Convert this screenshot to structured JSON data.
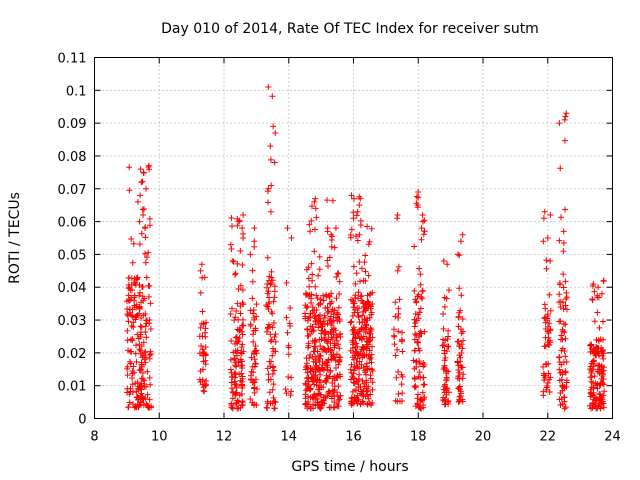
{
  "chart_data": {
    "type": "scatter",
    "title": "Day 010 of 2014, Rate Of TEC Index for receiver sutm",
    "xlabel": "GPS time / hours",
    "ylabel": "ROTI / TECUs",
    "xlim": [
      8,
      24
    ],
    "ylim": [
      0,
      0.11
    ],
    "xticks": [
      "8",
      "10",
      "12",
      "14",
      "16",
      "18",
      "20",
      "22",
      "24"
    ],
    "yticks": [
      "0",
      "0.01",
      "0.02",
      "0.03",
      "0.04",
      "0.05",
      "0.06",
      "0.07",
      "0.08",
      "0.09",
      "0.1",
      "0.11"
    ],
    "grid": true,
    "marker": "+",
    "series_color": "#ff0000",
    "clusters": [
      {
        "x_start": 9.0,
        "x_end": 9.75,
        "y_min": 0.003,
        "y_max": 0.077,
        "count": 220,
        "peaks": [
          0.077,
          0.076,
          0.075,
          0.072,
          0.07,
          0.068,
          0.066,
          0.062,
          0.06,
          0.058
        ]
      },
      {
        "x_start": 11.25,
        "x_end": 11.45,
        "y_min": 0.008,
        "y_max": 0.047,
        "count": 40,
        "peaks": [
          0.047,
          0.045,
          0.043
        ]
      },
      {
        "x_start": 12.2,
        "x_end": 12.6,
        "y_min": 0.003,
        "y_max": 0.062,
        "count": 120,
        "peaks": [
          0.062,
          0.06,
          0.058,
          0.055,
          0.053
        ]
      },
      {
        "x_start": 12.8,
        "x_end": 13.05,
        "y_min": 0.004,
        "y_max": 0.058,
        "count": 50,
        "peaks": [
          0.058,
          0.05
        ]
      },
      {
        "x_start": 13.3,
        "x_end": 13.6,
        "y_min": 0.003,
        "y_max": 0.101,
        "count": 70,
        "peaks": [
          0.101,
          0.089,
          0.087,
          0.083,
          0.078,
          0.071,
          0.07,
          0.063
        ]
      },
      {
        "x_start": 13.9,
        "x_end": 14.1,
        "y_min": 0.007,
        "y_max": 0.058,
        "count": 15,
        "peaks": [
          0.058,
          0.055
        ]
      },
      {
        "x_start": 14.5,
        "x_end": 15.6,
        "y_min": 0.003,
        "y_max": 0.067,
        "count": 380,
        "peaks": [
          0.067,
          0.066,
          0.058,
          0.057,
          0.056
        ]
      },
      {
        "x_start": 15.9,
        "x_end": 16.6,
        "y_min": 0.004,
        "y_max": 0.068,
        "count": 260,
        "peaks": [
          0.068,
          0.067,
          0.065,
          0.063,
          0.061
        ]
      },
      {
        "x_start": 17.25,
        "x_end": 17.55,
        "y_min": 0.005,
        "y_max": 0.062,
        "count": 30,
        "peaks": [
          0.062,
          0.061,
          0.045
        ]
      },
      {
        "x_start": 17.85,
        "x_end": 18.2,
        "y_min": 0.003,
        "y_max": 0.069,
        "count": 90,
        "peaks": [
          0.069,
          0.065,
          0.062,
          0.06,
          0.058
        ]
      },
      {
        "x_start": 18.75,
        "x_end": 18.95,
        "y_min": 0.004,
        "y_max": 0.048,
        "count": 50,
        "peaks": [
          0.048,
          0.047
        ]
      },
      {
        "x_start": 19.2,
        "x_end": 19.4,
        "y_min": 0.005,
        "y_max": 0.056,
        "count": 50,
        "peaks": [
          0.056,
          0.054,
          0.05
        ]
      },
      {
        "x_start": 21.85,
        "x_end": 22.1,
        "y_min": 0.007,
        "y_max": 0.063,
        "count": 50,
        "peaks": [
          0.063,
          0.062,
          0.061,
          0.055,
          0.054,
          0.048
        ]
      },
      {
        "x_start": 22.35,
        "x_end": 22.6,
        "y_min": 0.003,
        "y_max": 0.093,
        "count": 70,
        "peaks": [
          0.093,
          0.092,
          0.091,
          0.09,
          0.051,
          0.044
        ]
      },
      {
        "x_start": 23.3,
        "x_end": 23.75,
        "y_min": 0.003,
        "y_max": 0.042,
        "count": 140,
        "peaks": [
          0.042,
          0.041,
          0.04,
          0.038
        ]
      }
    ]
  }
}
